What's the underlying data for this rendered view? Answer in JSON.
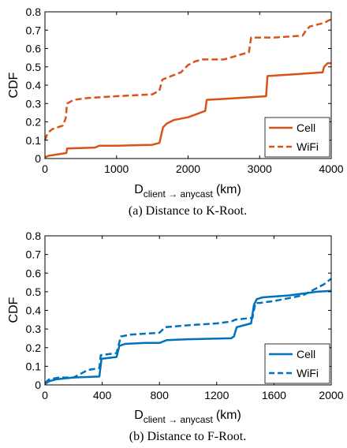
{
  "chart_data": [
    {
      "type": "line",
      "ylabel": "CDF",
      "xlabel_main": "D",
      "xlabel_sub": "client → anycast",
      "xlabel_unit": "(km)",
      "xlim": [
        0,
        4000
      ],
      "ylim": [
        0,
        0.8
      ],
      "xticks": [
        0,
        1000,
        2000,
        3000,
        4000
      ],
      "yticks": [
        0,
        0.1,
        0.2,
        0.3,
        0.4,
        0.5,
        0.6,
        0.7,
        0.8
      ],
      "xtick_labels": [
        "0",
        "1000",
        "2000",
        "3000",
        "4000"
      ],
      "ytick_labels": [
        "0",
        "0.1",
        "0.2",
        "0.3",
        "0.4",
        "0.5",
        "0.6",
        "0.7",
        "0.8"
      ],
      "grid": false,
      "legend_position": "bottom-right",
      "caption": "(a) Distance to K-Root.",
      "series": [
        {
          "name": "Cell",
          "color": "#d95319",
          "dash": "solid",
          "x": [
            0,
            20,
            50,
            300,
            310,
            700,
            760,
            1000,
            1500,
            1600,
            1620,
            1650,
            1700,
            1800,
            2000,
            2240,
            2260,
            2500,
            2900,
            3090,
            3110,
            3500,
            3880,
            3900,
            3950,
            4000
          ],
          "y": [
            0.005,
            0.01,
            0.015,
            0.03,
            0.055,
            0.06,
            0.07,
            0.07,
            0.075,
            0.085,
            0.12,
            0.17,
            0.19,
            0.21,
            0.225,
            0.26,
            0.32,
            0.325,
            0.335,
            0.34,
            0.45,
            0.46,
            0.47,
            0.5,
            0.52,
            0.52
          ]
        },
        {
          "name": "WiFi",
          "color": "#d95319",
          "dash": "dashed",
          "x": [
            0,
            20,
            40,
            100,
            250,
            290,
            310,
            400,
            600,
            1000,
            1500,
            1600,
            1640,
            1700,
            1900,
            2000,
            2100,
            2200,
            2500,
            2850,
            2880,
            2950,
            3200,
            3600,
            3650,
            3700,
            3900,
            4000
          ],
          "y": [
            0.1,
            0.12,
            0.14,
            0.16,
            0.18,
            0.22,
            0.3,
            0.32,
            0.33,
            0.34,
            0.35,
            0.37,
            0.43,
            0.44,
            0.47,
            0.51,
            0.53,
            0.54,
            0.54,
            0.58,
            0.66,
            0.66,
            0.66,
            0.67,
            0.7,
            0.72,
            0.74,
            0.76
          ]
        }
      ]
    },
    {
      "type": "line",
      "ylabel": "CDF",
      "xlabel_main": "D",
      "xlabel_sub": "client → anycast",
      "xlabel_unit": "(km)",
      "xlim": [
        0,
        2000
      ],
      "ylim": [
        0,
        0.8
      ],
      "xticks": [
        0,
        400,
        800,
        1200,
        1600,
        2000
      ],
      "yticks": [
        0,
        0.1,
        0.2,
        0.3,
        0.4,
        0.5,
        0.6,
        0.7,
        0.8
      ],
      "xtick_labels": [
        "0",
        "400",
        "800",
        "1200",
        "1600",
        "2000"
      ],
      "ytick_labels": [
        "0",
        "0.1",
        "0.2",
        "0.3",
        "0.4",
        "0.5",
        "0.6",
        "0.7",
        "0.8"
      ],
      "grid": false,
      "legend_position": "bottom-right",
      "caption": "(b) Distance to F-Root.",
      "series": [
        {
          "name": "Cell",
          "color": "#0072bd",
          "dash": "solid",
          "x": [
            0,
            30,
            80,
            200,
            380,
            395,
            500,
            520,
            560,
            700,
            800,
            850,
            1000,
            1300,
            1320,
            1340,
            1440,
            1460,
            1480,
            1520,
            1700,
            1900,
            2000
          ],
          "y": [
            0.005,
            0.02,
            0.03,
            0.04,
            0.045,
            0.14,
            0.15,
            0.21,
            0.22,
            0.225,
            0.225,
            0.24,
            0.245,
            0.25,
            0.26,
            0.31,
            0.33,
            0.43,
            0.46,
            0.47,
            0.48,
            0.5,
            0.505
          ]
        },
        {
          "name": "WiFi",
          "color": "#0072bd",
          "dash": "dashed",
          "x": [
            0,
            30,
            100,
            200,
            300,
            380,
            390,
            500,
            530,
            600,
            800,
            840,
            1000,
            1200,
            1300,
            1330,
            1450,
            1470,
            1500,
            1600,
            1800,
            1850,
            1950,
            2000
          ],
          "y": [
            0.01,
            0.03,
            0.04,
            0.04,
            0.08,
            0.09,
            0.16,
            0.17,
            0.26,
            0.27,
            0.28,
            0.31,
            0.32,
            0.33,
            0.34,
            0.35,
            0.36,
            0.44,
            0.44,
            0.45,
            0.48,
            0.5,
            0.54,
            0.57
          ]
        }
      ]
    }
  ]
}
